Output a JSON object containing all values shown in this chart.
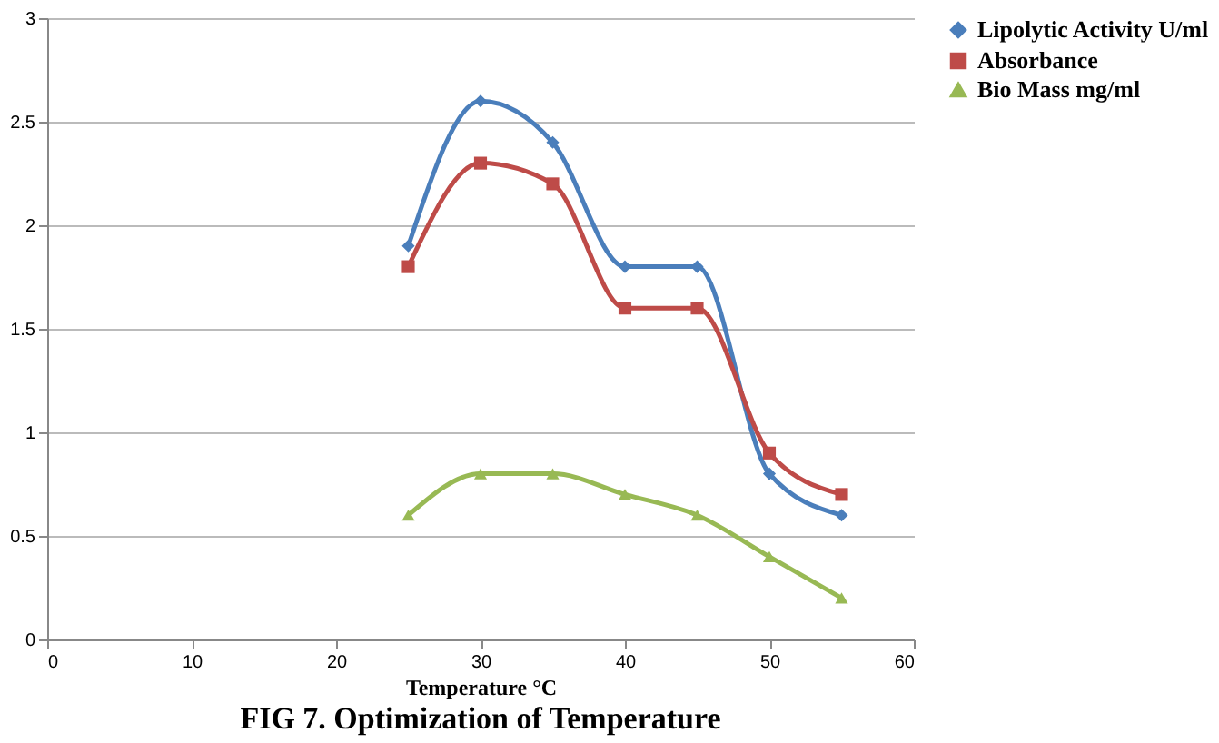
{
  "chart_data": {
    "type": "line",
    "title": "FIG 7. Optimization of Temperature",
    "xlabel": "Temperature °C",
    "x": [
      25,
      30,
      35,
      40,
      45,
      50,
      55
    ],
    "series": [
      {
        "name": "Lipolytic Activity U/ml",
        "color": "#4a7ebb",
        "marker": "diamond",
        "values": [
          1.9,
          2.6,
          2.4,
          1.8,
          1.8,
          0.8,
          0.6
        ]
      },
      {
        "name": "Absorbance",
        "color": "#be4b48",
        "marker": "square",
        "values": [
          1.8,
          2.3,
          2.2,
          1.6,
          1.6,
          0.9,
          0.7
        ]
      },
      {
        "name": "Bio Mass mg/ml",
        "color": "#98b954",
        "marker": "triangle",
        "values": [
          0.6,
          0.8,
          0.8,
          0.7,
          0.6,
          0.4,
          0.2
        ]
      }
    ],
    "xlim": [
      0,
      60
    ],
    "xticks": [
      0,
      10,
      20,
      30,
      40,
      50,
      60
    ],
    "ylim": [
      0,
      3
    ],
    "yticks": [
      0,
      0.5,
      1,
      1.5,
      2,
      2.5,
      3
    ],
    "grid": "y",
    "legend": "right",
    "line_style": "solid"
  }
}
